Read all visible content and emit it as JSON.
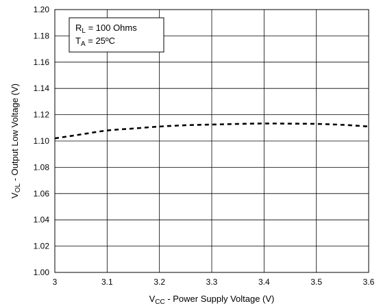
{
  "chart_data": {
    "type": "line",
    "xlabel": {
      "main": "V",
      "sub": "CC",
      "rest": " - Power Supply Voltage (V)"
    },
    "ylabel": {
      "main": "V",
      "sub": "OL",
      "rest": " - Output Low Voltage (V)"
    },
    "xlim": [
      3.0,
      3.6
    ],
    "ylim": [
      1.0,
      1.2
    ],
    "xticks": [
      "3",
      "3.1",
      "3.2",
      "3.3",
      "3.4",
      "3.5",
      "3.6"
    ],
    "yticks": [
      "1.00",
      "1.02",
      "1.04",
      "1.06",
      "1.08",
      "1.10",
      "1.12",
      "1.14",
      "1.16",
      "1.18",
      "1.20"
    ],
    "grid": true,
    "legend": {
      "placement": "top-left",
      "lines": [
        {
          "main": "R",
          "sub": "L",
          "rest": " = 100 Ohms"
        },
        {
          "main": "T",
          "sub": "A",
          "rest": " = 25ºC"
        }
      ]
    },
    "series": [
      {
        "style": "dashed",
        "color": "#000000",
        "x": [
          3.0,
          3.05,
          3.1,
          3.15,
          3.2,
          3.25,
          3.3,
          3.35,
          3.4,
          3.45,
          3.5,
          3.55,
          3.6
        ],
        "y": [
          1.102,
          1.105,
          1.108,
          1.1095,
          1.111,
          1.112,
          1.1125,
          1.113,
          1.1133,
          1.1132,
          1.113,
          1.1123,
          1.111
        ]
      }
    ]
  }
}
